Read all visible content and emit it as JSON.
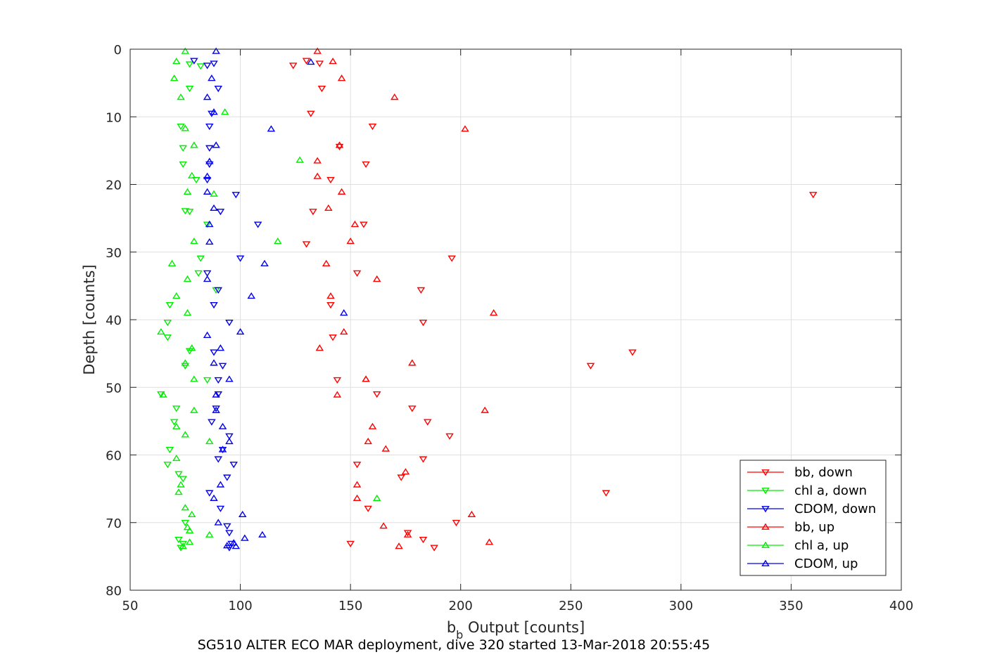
{
  "chart_data": {
    "type": "scatter",
    "title": "",
    "xlabel_main": "b",
    "xlabel_sub": "b",
    "xlabel_rest": " Output [counts]",
    "ylabel": "Depth [counts]",
    "caption": "SG510 ALTER ECO MAR deployment, dive 320 started 13-Mar-2018 20:55:45",
    "xlim": [
      50,
      400
    ],
    "ylim": [
      0,
      80
    ],
    "y_reversed": true,
    "grid": true,
    "legend_position": "bottom-right",
    "xticks": [
      50,
      100,
      150,
      200,
      250,
      300,
      350,
      400
    ],
    "yticks": [
      0,
      10,
      20,
      30,
      40,
      50,
      60,
      70,
      80
    ],
    "series": [
      {
        "name": "bb, down",
        "color": "#ff0000",
        "marker": "triangle-down",
        "points": [
          [
            130,
            1.7
          ],
          [
            124,
            2.4
          ],
          [
            136,
            2.1
          ],
          [
            137,
            5.8
          ],
          [
            132,
            9.5
          ],
          [
            160,
            11.4
          ],
          [
            145,
            14.4
          ],
          [
            157,
            17
          ],
          [
            141,
            19.3
          ],
          [
            133,
            24
          ],
          [
            156,
            25.9
          ],
          [
            130,
            28.8
          ],
          [
            196,
            30.9
          ],
          [
            153,
            33.1
          ],
          [
            182,
            35.6
          ],
          [
            141,
            37.8
          ],
          [
            183,
            40.4
          ],
          [
            142,
            42.6
          ],
          [
            278,
            44.8
          ],
          [
            259,
            46.8
          ],
          [
            144,
            48.9
          ],
          [
            162,
            51
          ],
          [
            360,
            21.5
          ],
          [
            178,
            53.1
          ],
          [
            185,
            55.1
          ],
          [
            195,
            57.2
          ],
          [
            183,
            60.6
          ],
          [
            153,
            61.4
          ],
          [
            173,
            63.3
          ],
          [
            266,
            65.6
          ],
          [
            158,
            67.9
          ],
          [
            198,
            70
          ],
          [
            176,
            71.5
          ],
          [
            183,
            72.5
          ],
          [
            150,
            73.1
          ],
          [
            188,
            73.7
          ]
        ]
      },
      {
        "name": "chl a, down",
        "color": "#00ee00",
        "marker": "triangle-down",
        "points": [
          [
            77,
            2.2
          ],
          [
            82,
            2.5
          ],
          [
            77,
            5.8
          ],
          [
            73,
            11.4
          ],
          [
            74,
            14.6
          ],
          [
            74,
            17
          ],
          [
            80,
            19.3
          ],
          [
            75,
            23.9
          ],
          [
            77,
            24
          ],
          [
            85,
            25.9
          ],
          [
            82,
            30.9
          ],
          [
            81,
            33.1
          ],
          [
            89,
            35.6
          ],
          [
            68,
            37.8
          ],
          [
            67,
            40.4
          ],
          [
            67,
            42.6
          ],
          [
            77,
            44.6
          ],
          [
            75,
            46.8
          ],
          [
            85,
            48.9
          ],
          [
            64,
            51
          ],
          [
            71,
            53.1
          ],
          [
            70,
            55.1
          ],
          [
            68,
            59.2
          ],
          [
            67,
            61.4
          ],
          [
            72,
            62.8
          ],
          [
            74,
            63.5
          ],
          [
            75,
            70
          ],
          [
            72,
            72.5
          ],
          [
            74,
            73.1
          ],
          [
            73,
            73.7
          ]
        ]
      },
      {
        "name": "CDOM, down",
        "color": "#0000ee",
        "marker": "triangle-down",
        "points": [
          [
            79,
            1.7
          ],
          [
            85,
            2.4
          ],
          [
            88,
            2.1
          ],
          [
            90,
            5.8
          ],
          [
            87,
            9.5
          ],
          [
            86,
            11.4
          ],
          [
            86,
            14.6
          ],
          [
            86,
            17
          ],
          [
            85,
            19.3
          ],
          [
            98,
            21.5
          ],
          [
            91,
            24
          ],
          [
            108,
            25.9
          ],
          [
            100,
            30.9
          ],
          [
            85,
            33.1
          ],
          [
            90,
            35.6
          ],
          [
            88,
            37.8
          ],
          [
            95,
            40.4
          ],
          [
            88,
            44.8
          ],
          [
            92,
            46.8
          ],
          [
            90,
            48.9
          ],
          [
            90,
            51
          ],
          [
            89,
            53.1
          ],
          [
            87,
            55.1
          ],
          [
            95,
            57.2
          ],
          [
            92,
            59.2
          ],
          [
            90,
            60.6
          ],
          [
            97,
            61.4
          ],
          [
            94,
            63.3
          ],
          [
            86,
            65.6
          ],
          [
            91,
            67.9
          ],
          [
            94,
            70.5
          ],
          [
            95,
            71.5
          ],
          [
            96,
            73.1
          ],
          [
            95,
            73.7
          ]
        ]
      },
      {
        "name": "bb, up",
        "color": "#ff0000",
        "marker": "triangle-up",
        "points": [
          [
            135,
            0.3
          ],
          [
            142,
            1.8
          ],
          [
            146,
            4.3
          ],
          [
            170,
            7.1
          ],
          [
            202,
            11.8
          ],
          [
            145,
            14.2
          ],
          [
            135,
            16.5
          ],
          [
            135,
            18.8
          ],
          [
            146,
            21.1
          ],
          [
            140,
            23.5
          ],
          [
            152,
            25.9
          ],
          [
            150,
            28.4
          ],
          [
            139,
            31.7
          ],
          [
            162,
            34
          ],
          [
            141,
            36.5
          ],
          [
            215,
            39
          ],
          [
            147,
            41.8
          ],
          [
            136,
            44.2
          ],
          [
            178,
            46.4
          ],
          [
            157,
            48.8
          ],
          [
            211,
            53.4
          ],
          [
            160,
            55.8
          ],
          [
            158,
            58
          ],
          [
            166,
            59.1
          ],
          [
            175,
            62.5
          ],
          [
            153,
            64.4
          ],
          [
            153,
            66.4
          ],
          [
            205,
            68.8
          ],
          [
            165,
            70.5
          ],
          [
            176,
            71.8
          ],
          [
            213,
            72.9
          ],
          [
            172,
            73.5
          ],
          [
            144,
            51.1
          ],
          [
            157,
            48.8
          ]
        ]
      },
      {
        "name": "chl a, up",
        "color": "#00ee00",
        "marker": "triangle-up",
        "points": [
          [
            75,
            0.3
          ],
          [
            71,
            1.8
          ],
          [
            70,
            4.3
          ],
          [
            73,
            7.1
          ],
          [
            93,
            9.3
          ],
          [
            75,
            11.7
          ],
          [
            79,
            14.2
          ],
          [
            127,
            16.4
          ],
          [
            78,
            18.7
          ],
          [
            76,
            21.1
          ],
          [
            88,
            21.4
          ],
          [
            79,
            28.4
          ],
          [
            117,
            28.4
          ],
          [
            69,
            31.7
          ],
          [
            76,
            34
          ],
          [
            71,
            36.5
          ],
          [
            76,
            39
          ],
          [
            64,
            41.8
          ],
          [
            78,
            44.2
          ],
          [
            75,
            46.4
          ],
          [
            79,
            48.8
          ],
          [
            65,
            51.1
          ],
          [
            79,
            53.4
          ],
          [
            71,
            55.8
          ],
          [
            75,
            57
          ],
          [
            86,
            58
          ],
          [
            71,
            60.5
          ],
          [
            73,
            64.4
          ],
          [
            72,
            65.5
          ],
          [
            75,
            67.8
          ],
          [
            78,
            68.8
          ],
          [
            76,
            70.7
          ],
          [
            77,
            71.2
          ],
          [
            86,
            71.8
          ],
          [
            77,
            72.9
          ],
          [
            74,
            73.5
          ],
          [
            162,
            66.4
          ]
        ]
      },
      {
        "name": "CDOM, up",
        "color": "#0000ee",
        "marker": "triangle-up",
        "points": [
          [
            89,
            0.3
          ],
          [
            132,
            1.9
          ],
          [
            87,
            4.3
          ],
          [
            85,
            7.1
          ],
          [
            88,
            9.3
          ],
          [
            114,
            11.8
          ],
          [
            89,
            14.2
          ],
          [
            86,
            16.6
          ],
          [
            85,
            18.8
          ],
          [
            85,
            21.1
          ],
          [
            88,
            23.5
          ],
          [
            86,
            25.9
          ],
          [
            86,
            28.5
          ],
          [
            111,
            31.7
          ],
          [
            85,
            34
          ],
          [
            105,
            36.5
          ],
          [
            147,
            39
          ],
          [
            100,
            41.8
          ],
          [
            85,
            42.3
          ],
          [
            91,
            44.2
          ],
          [
            88,
            46.4
          ],
          [
            95,
            48.8
          ],
          [
            89,
            51.1
          ],
          [
            89,
            53.4
          ],
          [
            92,
            55.8
          ],
          [
            95,
            58
          ],
          [
            92,
            59.2
          ],
          [
            91,
            64.4
          ],
          [
            88,
            66.4
          ],
          [
            101,
            68.8
          ],
          [
            90,
            70
          ],
          [
            110,
            71.8
          ],
          [
            102,
            72.3
          ],
          [
            97,
            73
          ],
          [
            98,
            73.5
          ],
          [
            94,
            73.4
          ]
        ]
      }
    ]
  }
}
